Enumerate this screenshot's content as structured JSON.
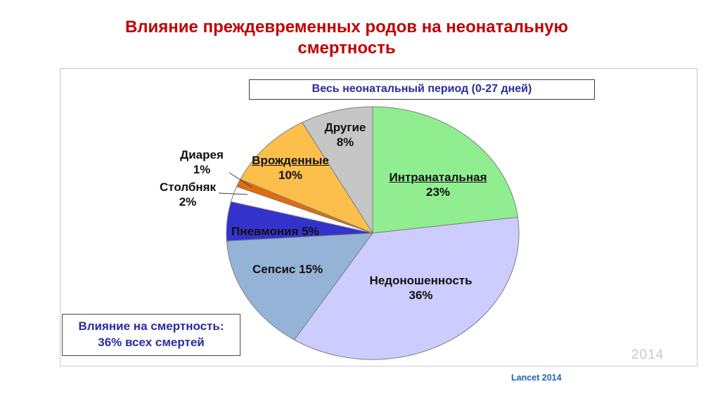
{
  "slide": {
    "title": "Влияние преждевременных родов на неонатальную смертность",
    "title_line1": "Влияние преждевременных родов на неонатальную",
    "title_line2": "смертность"
  },
  "chart_header": {
    "label": "Весь неонатальный период (0-27 дней)"
  },
  "note_box": {
    "line1": "Влияние на смертность:",
    "line2": "36% всех смертей"
  },
  "watermark": "2014",
  "source": "Lancet 2014",
  "colors": {
    "title_red": "#c00000",
    "header_blue": "#2b2b9c",
    "note_blue": "#2b2b9c",
    "source_blue": "#1f63b0",
    "watermark_gray": "#c9c9c9"
  },
  "chart_data": {
    "type": "pie",
    "title": "Весь неонатальный период (0-27 дней)",
    "unit": "%",
    "start_angle_deg": 0,
    "direction": "clockwise",
    "legend_position": "none",
    "slice_border_color": "#7f7f7f",
    "slices": [
      {
        "name": "intranatal",
        "label": "Интранатальная",
        "value": 23,
        "pct_label": "23%",
        "color": "#90ee90"
      },
      {
        "name": "prematurity",
        "label": "Недоношенность",
        "value": 36,
        "pct_label": "36%",
        "color": "#ccccff"
      },
      {
        "name": "sepsis",
        "label": "Сепсис",
        "value": 15,
        "pct_label": "15%",
        "color": "#95b3d7"
      },
      {
        "name": "pneumonia",
        "label": "Пневмония",
        "value": 5,
        "pct_label": "5%",
        "color": "#3333cc"
      },
      {
        "name": "tetanus",
        "label": "Столбняк",
        "value": 2,
        "pct_label": "2%",
        "color": "#ffffff"
      },
      {
        "name": "diarrhea",
        "label": "Диарея",
        "value": 1,
        "pct_label": "1%",
        "color": "#e26b0a"
      },
      {
        "name": "congenital",
        "label": "Врожденные",
        "value": 10,
        "pct_label": "10%",
        "color": "#fcbf4c"
      },
      {
        "name": "other",
        "label": "Другие",
        "value": 8,
        "pct_label": "8%",
        "color": "#c6c6c6"
      }
    ]
  }
}
